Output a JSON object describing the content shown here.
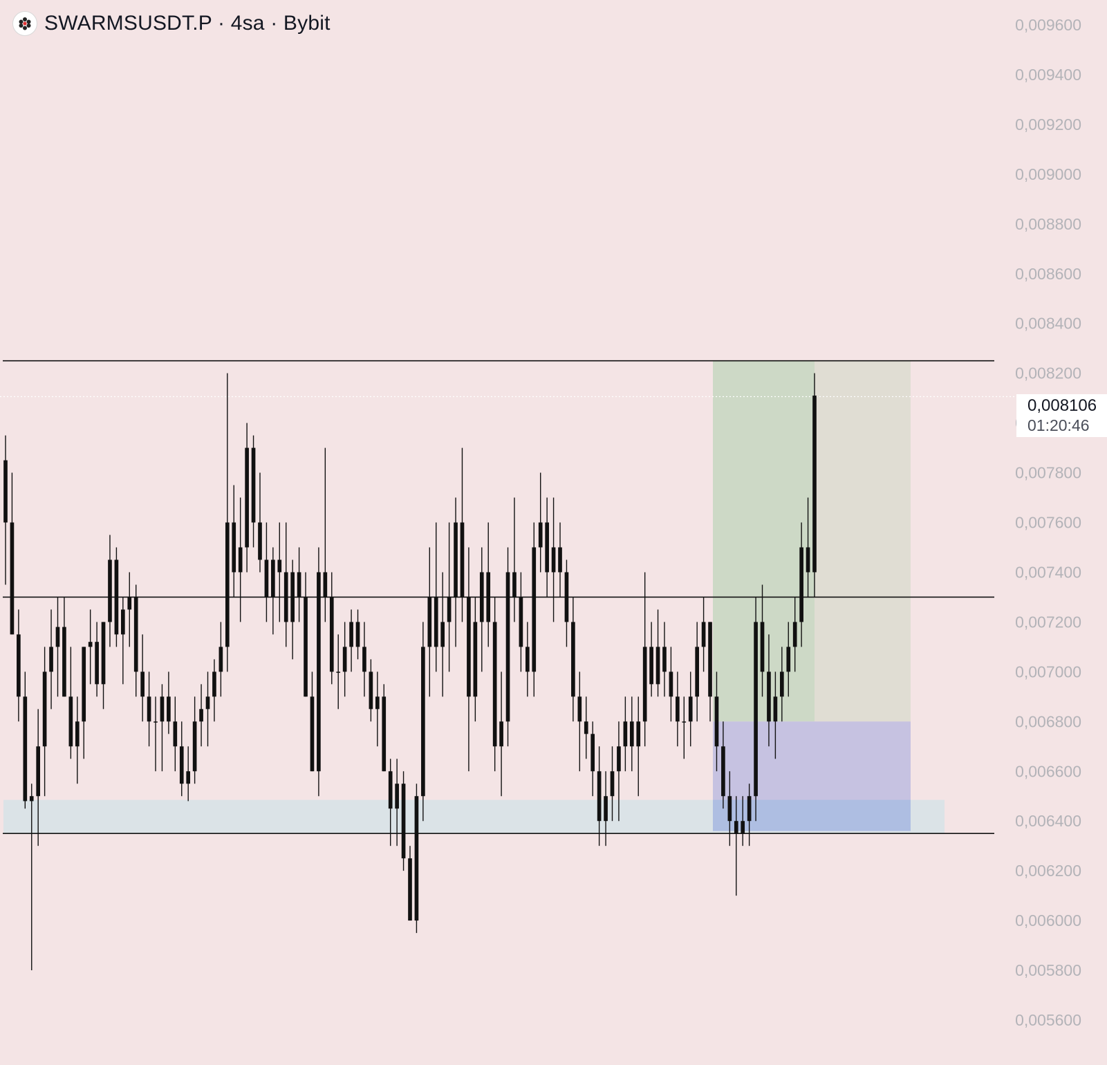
{
  "header": {
    "title": "SWARMSUSDT.P · 4sa · Bybit"
  },
  "price_label": {
    "value": "0,008106",
    "countdown": "01:20:46"
  },
  "colors": {
    "background": "#f4e4e5",
    "candle": "#111111",
    "axis_text": "#b3b3b8",
    "profit_zone": "#cdd9c6",
    "profit_zone_extension": "#e0ddd3",
    "loss_zone": "#c3c0e0",
    "demand_zone": "#dbe3e7",
    "level_line": "#111111"
  },
  "chart_data": {
    "type": "candlestick",
    "symbol": "SWARMSUSDT.P",
    "interval": "4sa",
    "exchange": "Bybit",
    "y_axis": {
      "min": 0.0056,
      "max": 0.0096,
      "ticks": [
        "0,009600",
        "0,009400",
        "0,009200",
        "0,009000",
        "0,008800",
        "0,008600",
        "0,008400",
        "0,008200",
        "0,008000",
        "0,007800",
        "0,007600",
        "0,007400",
        "0,007200",
        "0,007000",
        "0,006800",
        "0,006600",
        "0,006400",
        "0,006200",
        "0,006000",
        "0,005800",
        "0,005600"
      ],
      "tick_values": [
        0.0096,
        0.0094,
        0.0092,
        0.009,
        0.0088,
        0.0086,
        0.0084,
        0.0082,
        0.008,
        0.0078,
        0.0076,
        0.0074,
        0.0072,
        0.007,
        0.0068,
        0.0066,
        0.0064,
        0.0062,
        0.006,
        0.0058,
        0.0056
      ],
      "position": "right"
    },
    "current_price": 0.008106,
    "horizontal_levels": [
      0.00825,
      0.0073,
      0.00635
    ],
    "zones": {
      "demand": {
        "low": 0.00635,
        "high": 0.006485
      },
      "position_long": {
        "entry": 0.0068,
        "target": 0.00825,
        "stop": 0.00636
      }
    },
    "grid": false,
    "candles": [
      [
        0.00785,
        0.00795,
        0.00735,
        0.0076
      ],
      [
        0.0076,
        0.0078,
        0.00715,
        0.00715
      ],
      [
        0.00715,
        0.00725,
        0.0068,
        0.0069
      ],
      [
        0.0069,
        0.007,
        0.00645,
        0.00648
      ],
      [
        0.00648,
        0.00655,
        0.0058,
        0.0065
      ],
      [
        0.0065,
        0.00685,
        0.0063,
        0.0067
      ],
      [
        0.0067,
        0.0071,
        0.0065,
        0.007
      ],
      [
        0.007,
        0.00725,
        0.00685,
        0.0071
      ],
      [
        0.0071,
        0.0073,
        0.0069,
        0.00718
      ],
      [
        0.00718,
        0.0073,
        0.0069,
        0.0069
      ],
      [
        0.0069,
        0.0071,
        0.00665,
        0.0067
      ],
      [
        0.0067,
        0.0069,
        0.00655,
        0.0068
      ],
      [
        0.0068,
        0.0071,
        0.00665,
        0.0071
      ],
      [
        0.0071,
        0.00725,
        0.00695,
        0.00712
      ],
      [
        0.00712,
        0.0072,
        0.0069,
        0.00695
      ],
      [
        0.00695,
        0.0072,
        0.00685,
        0.0072
      ],
      [
        0.0072,
        0.00755,
        0.0071,
        0.00745
      ],
      [
        0.00745,
        0.0075,
        0.0071,
        0.00715
      ],
      [
        0.00715,
        0.0073,
        0.00695,
        0.00725
      ],
      [
        0.00725,
        0.0074,
        0.0071,
        0.0073
      ],
      [
        0.0073,
        0.00735,
        0.0069,
        0.007
      ],
      [
        0.007,
        0.00715,
        0.0068,
        0.0069
      ],
      [
        0.0069,
        0.007,
        0.0067,
        0.0068
      ],
      [
        0.0068,
        0.0069,
        0.0066,
        0.0068
      ],
      [
        0.0068,
        0.00695,
        0.0066,
        0.0069
      ],
      [
        0.0069,
        0.007,
        0.00675,
        0.0068
      ],
      [
        0.0068,
        0.0069,
        0.0066,
        0.0067
      ],
      [
        0.0067,
        0.0068,
        0.0065,
        0.00655
      ],
      [
        0.00655,
        0.0067,
        0.00648,
        0.0066
      ],
      [
        0.0066,
        0.0069,
        0.00655,
        0.0068
      ],
      [
        0.0068,
        0.00695,
        0.0067,
        0.00685
      ],
      [
        0.00685,
        0.007,
        0.0067,
        0.0069
      ],
      [
        0.0069,
        0.00705,
        0.0068,
        0.007
      ],
      [
        0.007,
        0.0072,
        0.0069,
        0.0071
      ],
      [
        0.0071,
        0.0082,
        0.007,
        0.0076
      ],
      [
        0.0076,
        0.00775,
        0.0073,
        0.0074
      ],
      [
        0.0074,
        0.0077,
        0.0072,
        0.0075
      ],
      [
        0.0075,
        0.008,
        0.0074,
        0.0079
      ],
      [
        0.0079,
        0.00795,
        0.0075,
        0.0076
      ],
      [
        0.0076,
        0.0078,
        0.0074,
        0.00745
      ],
      [
        0.00745,
        0.0076,
        0.0072,
        0.0073
      ],
      [
        0.0073,
        0.0075,
        0.00715,
        0.00745
      ],
      [
        0.00745,
        0.0076,
        0.0072,
        0.0074
      ],
      [
        0.0074,
        0.0076,
        0.0071,
        0.0072
      ],
      [
        0.0072,
        0.00745,
        0.00705,
        0.0074
      ],
      [
        0.0074,
        0.0075,
        0.0072,
        0.0073
      ],
      [
        0.0073,
        0.0074,
        0.0069,
        0.0069
      ],
      [
        0.0069,
        0.007,
        0.0066,
        0.0066
      ],
      [
        0.0066,
        0.0075,
        0.0065,
        0.0074
      ],
      [
        0.0074,
        0.0079,
        0.0072,
        0.0073
      ],
      [
        0.0073,
        0.0074,
        0.00695,
        0.007
      ],
      [
        0.007,
        0.00715,
        0.00685,
        0.007
      ],
      [
        0.007,
        0.0072,
        0.0069,
        0.0071
      ],
      [
        0.0071,
        0.00725,
        0.007,
        0.0072
      ],
      [
        0.0072,
        0.00725,
        0.00705,
        0.0071
      ],
      [
        0.0071,
        0.0072,
        0.0069,
        0.007
      ],
      [
        0.007,
        0.00705,
        0.0068,
        0.00685
      ],
      [
        0.00685,
        0.007,
        0.0067,
        0.0069
      ],
      [
        0.0069,
        0.00695,
        0.0066,
        0.0066
      ],
      [
        0.0066,
        0.00665,
        0.0063,
        0.00645
      ],
      [
        0.00645,
        0.00665,
        0.0063,
        0.00655
      ],
      [
        0.00655,
        0.0066,
        0.0062,
        0.00625
      ],
      [
        0.00625,
        0.0063,
        0.006,
        0.006
      ],
      [
        0.006,
        0.00655,
        0.00595,
        0.0065
      ],
      [
        0.0065,
        0.0072,
        0.0064,
        0.0071
      ],
      [
        0.0071,
        0.0075,
        0.0069,
        0.0073
      ],
      [
        0.0073,
        0.0076,
        0.007,
        0.0071
      ],
      [
        0.0071,
        0.0074,
        0.0069,
        0.0072
      ],
      [
        0.0072,
        0.0076,
        0.007,
        0.0073
      ],
      [
        0.0073,
        0.0077,
        0.0071,
        0.0076
      ],
      [
        0.0076,
        0.0079,
        0.0072,
        0.0073
      ],
      [
        0.0073,
        0.0075,
        0.0066,
        0.0069
      ],
      [
        0.0069,
        0.0073,
        0.0068,
        0.0072
      ],
      [
        0.0072,
        0.0075,
        0.007,
        0.0074
      ],
      [
        0.0074,
        0.0076,
        0.0071,
        0.0072
      ],
      [
        0.0072,
        0.0073,
        0.0066,
        0.0067
      ],
      [
        0.0067,
        0.007,
        0.0065,
        0.0068
      ],
      [
        0.0068,
        0.0075,
        0.0067,
        0.0074
      ],
      [
        0.0074,
        0.0077,
        0.0072,
        0.0073
      ],
      [
        0.0073,
        0.0074,
        0.007,
        0.0071
      ],
      [
        0.0071,
        0.0072,
        0.0069,
        0.007
      ],
      [
        0.007,
        0.0076,
        0.0069,
        0.0075
      ],
      [
        0.0075,
        0.0078,
        0.0074,
        0.0076
      ],
      [
        0.0076,
        0.0077,
        0.0073,
        0.0074
      ],
      [
        0.0074,
        0.0077,
        0.0072,
        0.0075
      ],
      [
        0.0075,
        0.0076,
        0.0073,
        0.0074
      ],
      [
        0.0074,
        0.00745,
        0.0071,
        0.0072
      ],
      [
        0.0072,
        0.0073,
        0.0068,
        0.0069
      ],
      [
        0.0069,
        0.007,
        0.0066,
        0.0068
      ],
      [
        0.0068,
        0.0069,
        0.00665,
        0.00675
      ],
      [
        0.00675,
        0.0068,
        0.0065,
        0.0066
      ],
      [
        0.0066,
        0.0067,
        0.0063,
        0.0064
      ],
      [
        0.0064,
        0.0066,
        0.0063,
        0.0065
      ],
      [
        0.0065,
        0.0067,
        0.0064,
        0.0066
      ],
      [
        0.0066,
        0.0068,
        0.0064,
        0.0067
      ],
      [
        0.0067,
        0.0069,
        0.0066,
        0.0068
      ],
      [
        0.0068,
        0.0069,
        0.0066,
        0.0067
      ],
      [
        0.0067,
        0.0069,
        0.0065,
        0.0068
      ],
      [
        0.0068,
        0.0074,
        0.0067,
        0.0071
      ],
      [
        0.0071,
        0.0072,
        0.0069,
        0.00695
      ],
      [
        0.00695,
        0.00725,
        0.0069,
        0.0071
      ],
      [
        0.0071,
        0.0072,
        0.0069,
        0.007
      ],
      [
        0.007,
        0.0071,
        0.0068,
        0.0069
      ],
      [
        0.0069,
        0.007,
        0.0067,
        0.0068
      ],
      [
        0.0068,
        0.0069,
        0.00665,
        0.0068
      ],
      [
        0.0068,
        0.007,
        0.0067,
        0.0069
      ],
      [
        0.0069,
        0.0072,
        0.0068,
        0.0071
      ],
      [
        0.0071,
        0.0073,
        0.007,
        0.0072
      ],
      [
        0.0072,
        0.0072,
        0.0068,
        0.0069
      ],
      [
        0.0069,
        0.007,
        0.0066,
        0.0067
      ],
      [
        0.0067,
        0.0068,
        0.00645,
        0.0065
      ],
      [
        0.0065,
        0.0066,
        0.0063,
        0.0064
      ],
      [
        0.0064,
        0.0065,
        0.0061,
        0.00635
      ],
      [
        0.00635,
        0.0065,
        0.0063,
        0.0064
      ],
      [
        0.0064,
        0.00655,
        0.0063,
        0.0065
      ],
      [
        0.0065,
        0.0073,
        0.0064,
        0.0072
      ],
      [
        0.0072,
        0.00735,
        0.0069,
        0.007
      ],
      [
        0.007,
        0.00715,
        0.0067,
        0.0068
      ],
      [
        0.0068,
        0.007,
        0.00665,
        0.0069
      ],
      [
        0.0069,
        0.0071,
        0.0068,
        0.007
      ],
      [
        0.007,
        0.0072,
        0.0069,
        0.0071
      ],
      [
        0.0071,
        0.0073,
        0.007,
        0.0072
      ],
      [
        0.0072,
        0.0076,
        0.0071,
        0.0075
      ],
      [
        0.0075,
        0.0077,
        0.0073,
        0.0074
      ],
      [
        0.0074,
        0.0082,
        0.0073,
        0.00811
      ]
    ]
  }
}
